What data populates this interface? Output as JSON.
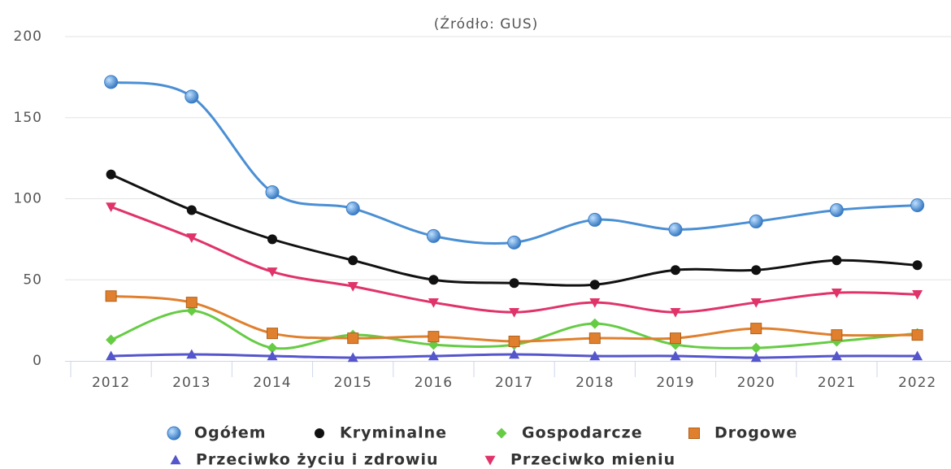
{
  "chart_data": {
    "type": "line",
    "subtitle": "(Źródło: GUS)",
    "categories": [
      "2012",
      "2013",
      "2014",
      "2015",
      "2016",
      "2017",
      "2018",
      "2019",
      "2020",
      "2021",
      "2022"
    ],
    "ylim": [
      0,
      200
    ],
    "yticks": [
      0,
      50,
      100,
      150,
      200
    ],
    "grid": true,
    "smooth": true,
    "legend": "bottom",
    "series": [
      {
        "name": "Ogółem",
        "color": "#4a8fd4",
        "marker": "sphere",
        "values": [
          172,
          163,
          104,
          94,
          77,
          73,
          87,
          81,
          86,
          93,
          96
        ]
      },
      {
        "name": "Kryminalne",
        "color": "#111111",
        "marker": "circle",
        "values": [
          115,
          93,
          75,
          62,
          50,
          48,
          47,
          56,
          56,
          62,
          59
        ]
      },
      {
        "name": "Gospodarcze",
        "color": "#66cc44",
        "marker": "diamond",
        "values": [
          13,
          31,
          8,
          16,
          10,
          10,
          23,
          10,
          8,
          12,
          17
        ]
      },
      {
        "name": "Drogowe",
        "color": "#e0802e",
        "marker": "square",
        "values": [
          40,
          36,
          17,
          14,
          15,
          12,
          14,
          14,
          20,
          16,
          16
        ]
      },
      {
        "name": "Przeciwko życiu i zdrowiu",
        "color": "#5555cc",
        "marker": "triangle",
        "values": [
          3,
          4,
          3,
          2,
          3,
          4,
          3,
          3,
          2,
          3,
          3
        ]
      },
      {
        "name": "Przeciwko mieniu",
        "color": "#e0336a",
        "marker": "triangle-down",
        "values": [
          95,
          76,
          55,
          46,
          36,
          30,
          36,
          30,
          36,
          42,
          41
        ]
      }
    ]
  }
}
